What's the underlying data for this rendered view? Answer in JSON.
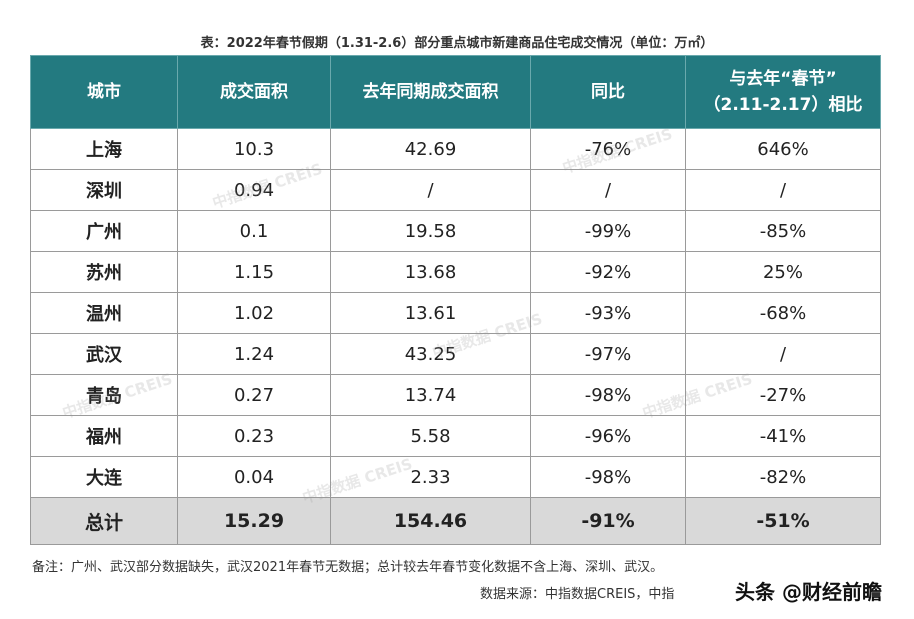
{
  "caption": "表：2022年春节假期（1.31-2.6）部分重点城市新建商品住宅成交情况（单位：万㎡）",
  "table": {
    "headers": [
      "城市",
      "成交面积",
      "去年同期成交面积",
      "同比"
    ],
    "header_last_line1": "与去年“春节”",
    "header_last_line2": "（2.11-2.17）相比",
    "rows": [
      {
        "city": "上海",
        "area": "10.3",
        "last_year": "42.69",
        "yoy": "-76%",
        "vs_spring": "646%"
      },
      {
        "city": "深圳",
        "area": "0.94",
        "last_year": "/",
        "yoy": "/",
        "vs_spring": "/"
      },
      {
        "city": "广州",
        "area": "0.1",
        "last_year": "19.58",
        "yoy": "-99%",
        "vs_spring": "-85%"
      },
      {
        "city": "苏州",
        "area": "1.15",
        "last_year": "13.68",
        "yoy": "-92%",
        "vs_spring": "25%"
      },
      {
        "city": "温州",
        "area": "1.02",
        "last_year": "13.61",
        "yoy": "-93%",
        "vs_spring": "-68%"
      },
      {
        "city": "武汉",
        "area": "1.24",
        "last_year": "43.25",
        "yoy": "-97%",
        "vs_spring": "/"
      },
      {
        "city": "青岛",
        "area": "0.27",
        "last_year": "13.74",
        "yoy": "-98%",
        "vs_spring": "-27%"
      },
      {
        "city": "福州",
        "area": "0.23",
        "last_year": "5.58",
        "yoy": "-96%",
        "vs_spring": "-41%"
      },
      {
        "city": "大连",
        "area": "0.04",
        "last_year": "2.33",
        "yoy": "-98%",
        "vs_spring": "-82%"
      }
    ],
    "total": {
      "city": "总计",
      "area": "15.29",
      "last_year": "154.46",
      "yoy": "-91%",
      "vs_spring": "-51%"
    }
  },
  "watermark_text": "中指数据 CREIS",
  "note": "备注：广州、武汉部分数据缺失，武汉2021年春节无数据；总计较去年春节变化数据不含上海、深圳、武汉。",
  "source": "数据来源：中指数据CREIS，中指",
  "brand": "头条 @财经前瞻",
  "colors": {
    "header_bg": "#237a80",
    "total_bg": "#d9d9d9"
  }
}
